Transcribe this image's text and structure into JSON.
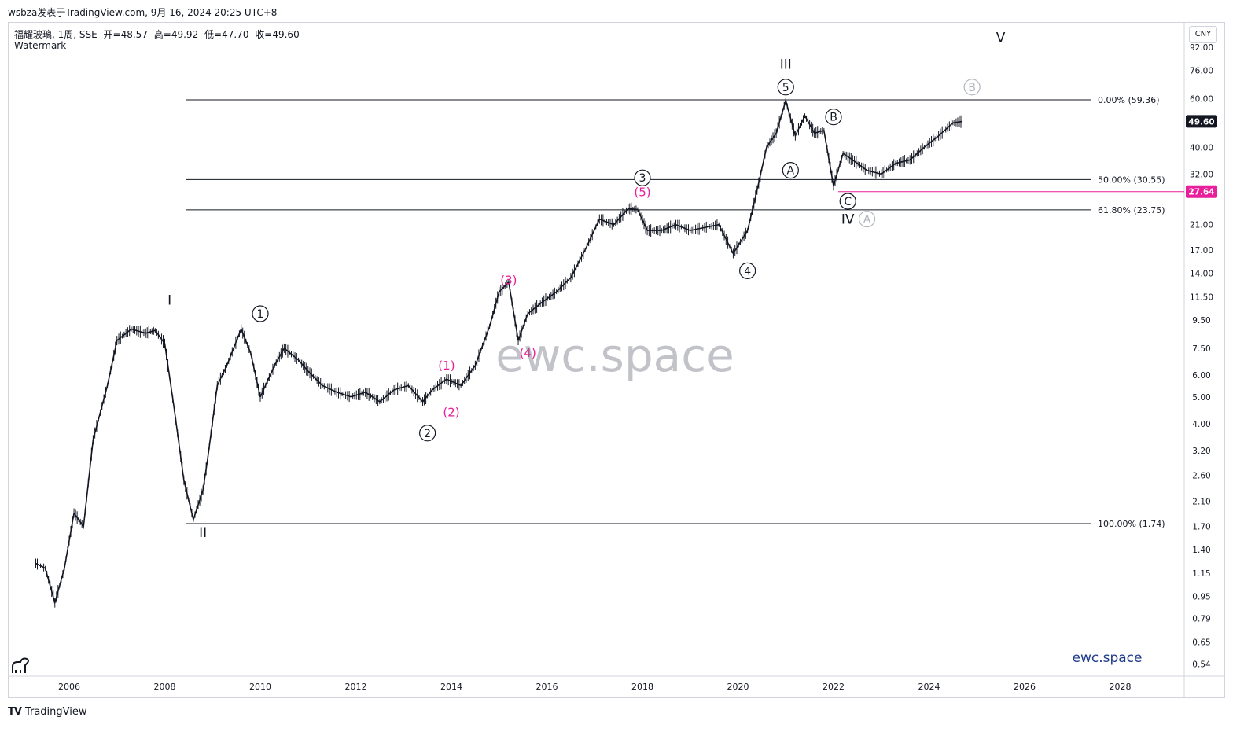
{
  "header": {
    "text": "wsbza发表于TradingView.com,  9月 16, 2024 20:25 UTC+8"
  },
  "legend": {
    "symbol": "福耀玻璃, 1周, SSE",
    "open": "开=48.57",
    "high": "高=49.92",
    "low": "低=47.70",
    "close": "收=49.60",
    "sub": "Watermark"
  },
  "currency": "CNY",
  "footer": {
    "brand": "TradingView",
    "logo": "TV"
  },
  "watermark_text": "ewc.space",
  "brand_bottom_right": "ewc.space",
  "colors": {
    "price": "#131722",
    "magenta": "#e91e9a",
    "grey": "#b2b5be",
    "fibline": "#131722",
    "support": "#e91e9a",
    "last_price_bg": "#131722"
  },
  "chart_data": {
    "type": "line",
    "title": "",
    "scale": "log",
    "x_ticks": [
      "2006",
      "2008",
      "2010",
      "2012",
      "2014",
      "2016",
      "2018",
      "2020",
      "2022",
      "2024",
      "2026",
      "2028"
    ],
    "y_ticks": [
      "92.00",
      "76.00",
      "60.00",
      "49.60",
      "40.00",
      "32.00",
      "27.64",
      "21.00",
      "17.00",
      "14.00",
      "11.50",
      "9.50",
      "7.50",
      "6.00",
      "5.00",
      "4.00",
      "3.20",
      "2.60",
      "2.10",
      "1.70",
      "1.40",
      "1.15",
      "0.95",
      "0.79",
      "0.65",
      "0.54"
    ],
    "series": [
      {
        "x": [
          2005.3,
          2005.5,
          2005.7,
          2005.9,
          2006.1,
          2006.3,
          2006.5,
          2006.8,
          2007.0,
          2007.3,
          2007.6,
          2007.8,
          2008.0,
          2008.2,
          2008.4,
          2008.6,
          2008.8,
          2008.9,
          2009.1,
          2009.3,
          2009.6,
          2009.8,
          2010.0,
          2010.3,
          2010.5,
          2010.8,
          2011.0,
          2011.3,
          2011.6,
          2011.9,
          2012.2,
          2012.5,
          2012.8,
          2013.1,
          2013.4,
          2013.6,
          2013.9,
          2014.2,
          2014.5,
          2014.8,
          2015.0,
          2015.2,
          2015.4,
          2015.6,
          2015.9,
          2016.2,
          2016.5,
          2016.8,
          2017.1,
          2017.4,
          2017.7,
          2017.9,
          2018.1,
          2018.4,
          2018.7,
          2019.0,
          2019.3,
          2019.6,
          2019.9,
          2020.2,
          2020.4,
          2020.6,
          2020.8,
          2021.0,
          2021.2,
          2021.4,
          2021.6,
          2021.8,
          2022.0,
          2022.2,
          2022.4,
          2022.7,
          2023.0,
          2023.3,
          2023.6,
          2023.9,
          2024.2,
          2024.5,
          2024.7
        ],
        "values": [
          1.25,
          1.2,
          0.9,
          1.2,
          1.9,
          1.7,
          3.5,
          5.5,
          8.0,
          8.8,
          8.5,
          8.7,
          7.8,
          4.5,
          2.5,
          1.8,
          2.3,
          3.0,
          5.5,
          6.5,
          8.8,
          7.2,
          5.0,
          6.5,
          7.5,
          6.8,
          6.2,
          5.5,
          5.2,
          5.0,
          5.2,
          4.8,
          5.3,
          5.5,
          4.8,
          5.3,
          5.8,
          5.5,
          6.5,
          9.0,
          12.0,
          13.0,
          8.0,
          10.0,
          11.0,
          12.0,
          13.5,
          17.0,
          22.0,
          21.0,
          24.0,
          23.8,
          20.0,
          20.0,
          21.0,
          20.0,
          20.5,
          21.0,
          16.5,
          20.0,
          28.0,
          40.0,
          45.0,
          59.0,
          44.0,
          52.0,
          45.0,
          46.0,
          29.0,
          38.0,
          36.0,
          33.0,
          32.0,
          35.0,
          36.0,
          40.0,
          44.0,
          49.0,
          49.6
        ]
      }
    ],
    "fib_levels": [
      {
        "label": "0.00% (59.36)",
        "value": 59.36
      },
      {
        "label": "50.00% (30.55)",
        "value": 30.55
      },
      {
        "label": "61.80% (23.75)",
        "value": 23.75
      },
      {
        "label": "100.00% (1.74)",
        "value": 1.74
      }
    ],
    "support_line": {
      "value": 27.64,
      "label": "27.64"
    },
    "last_price": {
      "value": 49.6,
      "label": "49.60"
    },
    "wave_labels": [
      {
        "text": "I",
        "x": 2008.1,
        "y": 11.2,
        "style": "plain"
      },
      {
        "text": "II",
        "x": 2008.8,
        "y": 1.62,
        "style": "plain"
      },
      {
        "text": "1",
        "x": 2010.0,
        "y": 10.0,
        "style": "circle"
      },
      {
        "text": "2",
        "x": 2013.5,
        "y": 3.7,
        "style": "circle"
      },
      {
        "text": "3",
        "x": 2018.0,
        "y": 31.0,
        "style": "circle"
      },
      {
        "text": "4",
        "x": 2020.2,
        "y": 14.3,
        "style": "circle"
      },
      {
        "text": "5",
        "x": 2021.0,
        "y": 66.0,
        "style": "circle"
      },
      {
        "text": "III",
        "x": 2021.0,
        "y": 80.0,
        "style": "plain"
      },
      {
        "text": "A",
        "x": 2021.1,
        "y": 33.0,
        "style": "circle"
      },
      {
        "text": "B",
        "x": 2022.0,
        "y": 51.5,
        "style": "circle"
      },
      {
        "text": "C",
        "x": 2022.3,
        "y": 25.5,
        "style": "circle"
      },
      {
        "text": "IV",
        "x": 2022.3,
        "y": 22.0,
        "style": "plain"
      },
      {
        "text": "A",
        "x": 2022.7,
        "y": 22.0,
        "style": "circle-grey"
      },
      {
        "text": "B",
        "x": 2024.9,
        "y": 66.0,
        "style": "circle-grey"
      },
      {
        "text": "V",
        "x": 2025.5,
        "y": 100.0,
        "style": "plain"
      },
      {
        "text": "(1)",
        "x": 2013.9,
        "y": 6.5,
        "style": "magenta"
      },
      {
        "text": "(2)",
        "x": 2014.0,
        "y": 4.4,
        "style": "magenta"
      },
      {
        "text": "(3)",
        "x": 2015.2,
        "y": 13.2,
        "style": "magenta"
      },
      {
        "text": "(4)",
        "x": 2015.6,
        "y": 7.2,
        "style": "magenta"
      },
      {
        "text": "(5)",
        "x": 2018.0,
        "y": 27.5,
        "style": "magenta"
      }
    ]
  }
}
